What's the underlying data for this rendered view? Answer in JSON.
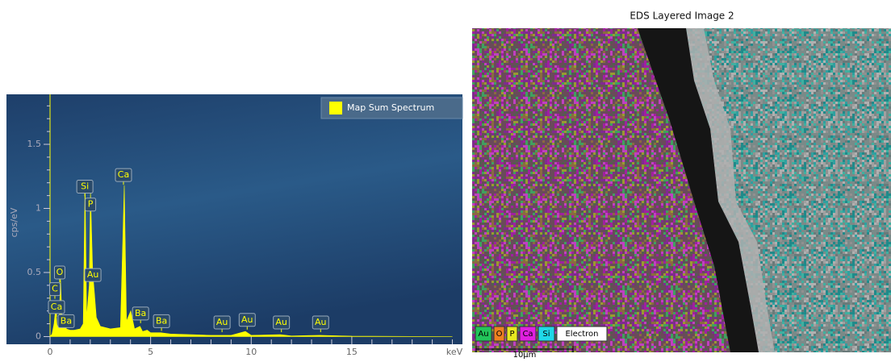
{
  "chart_data": {
    "type": "area",
    "ylabel": "cps/eV",
    "xlabel": "keV",
    "x": [
      0,
      0.1,
      0.2,
      0.28,
      0.35,
      0.45,
      0.52,
      0.6,
      0.8,
      1.0,
      1.2,
      1.5,
      1.65,
      1.74,
      1.82,
      1.95,
      2.01,
      2.12,
      2.2,
      2.3,
      2.5,
      3.0,
      3.5,
      3.69,
      3.8,
      4.01,
      4.2,
      4.47,
      4.6,
      4.83,
      5.0,
      5.5,
      6.0,
      7.0,
      8.0,
      9.0,
      9.71,
      10.0,
      11.44,
      12.0,
      13.4,
      15.0,
      20.0
    ],
    "series": [
      {
        "name": "Map Sum Spectrum",
        "color": "#ffff00",
        "values": [
          0,
          0.02,
          0.1,
          0.22,
          0.08,
          0.1,
          0.45,
          0.12,
          0.06,
          0.05,
          0.05,
          0.06,
          0.1,
          1.2,
          0.15,
          0.4,
          1.13,
          0.5,
          0.35,
          0.15,
          0.08,
          0.06,
          0.07,
          1.18,
          0.12,
          0.2,
          0.06,
          0.08,
          0.04,
          0.05,
          0.03,
          0.03,
          0.02,
          0.015,
          0.01,
          0.01,
          0.04,
          0.01,
          0.015,
          0.005,
          0.01,
          0.003,
          0
        ]
      }
    ],
    "xlim": [
      0,
      20.5
    ],
    "ylim": [
      -0.06,
      1.89
    ],
    "xticks": [
      0,
      5,
      10,
      15
    ],
    "yticks": [
      0,
      0.5,
      1,
      1.5
    ],
    "x_minor_ticks": [
      1,
      2,
      3,
      4,
      6,
      7,
      8,
      9,
      11,
      12,
      13,
      14,
      16,
      17,
      18,
      19,
      20
    ],
    "y_minor_ticks": [
      0.1,
      0.2,
      0.3,
      0.4,
      0.6,
      0.7,
      0.8,
      0.9,
      1.1,
      1.2,
      1.3,
      1.4,
      1.6,
      1.7,
      1.8
    ],
    "legend": "top-right",
    "peak_labels": [
      {
        "text": "Ca",
        "x": 3.65,
        "y": 1.26
      },
      {
        "text": "Si",
        "x": 1.73,
        "y": 1.17
      },
      {
        "text": "P",
        "x": 2.01,
        "y": 1.03
      },
      {
        "text": "Au",
        "x": 2.13,
        "y": 0.48
      },
      {
        "text": "O",
        "x": 0.48,
        "y": 0.5
      },
      {
        "text": "C",
        "x": 0.24,
        "y": 0.37
      },
      {
        "text": "Ca",
        "x": 0.32,
        "y": 0.23
      },
      {
        "text": "Ba",
        "x": 0.8,
        "y": 0.12
      },
      {
        "text": "Ba",
        "x": 4.5,
        "y": 0.18
      },
      {
        "text": "Ba",
        "x": 5.54,
        "y": 0.12
      },
      {
        "text": "Au",
        "x": 8.55,
        "y": 0.11
      },
      {
        "text": "Au",
        "x": 9.8,
        "y": 0.13
      },
      {
        "text": "Au",
        "x": 11.5,
        "y": 0.11
      },
      {
        "text": "Au",
        "x": 13.45,
        "y": 0.11
      }
    ]
  },
  "image": {
    "title": "EDS Layered Image 2",
    "legend": [
      {
        "label": "Au",
        "color": "#22c45a"
      },
      {
        "label": "O",
        "color": "#f08020"
      },
      {
        "label": "P",
        "color": "#e8e820"
      },
      {
        "label": "Ca",
        "color": "#e020e0"
      },
      {
        "label": "Si",
        "color": "#20d8e8"
      },
      {
        "label": "Electron",
        "color": "#ffffff"
      }
    ],
    "scale_bar": "10µm"
  }
}
